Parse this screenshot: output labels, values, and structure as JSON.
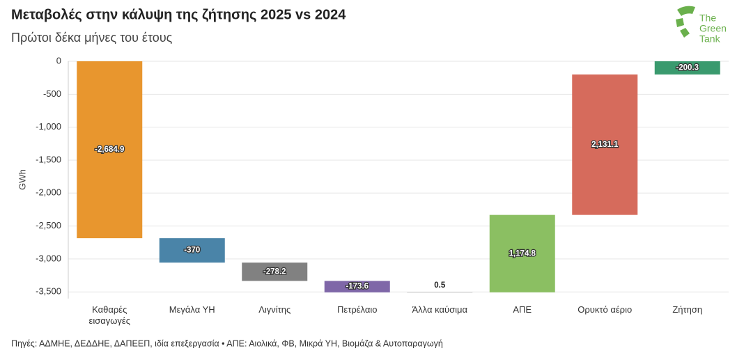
{
  "chart_data": {
    "type": "waterfall",
    "title": "Μεταβολές στην κάλυψη της ζήτησης 2025 vs 2024",
    "subtitle": "Πρώτοι δέκα μήνες του έτους",
    "y_label": "GWh",
    "source": "Πηγές: ΑΔΜΗΕ, ΔΕΔΔΗΕ, ΔΑΠΕΕΠ, ιδία επεξεργασία • ΑΠΕ: Αιολικά, ΦΒ, Μικρά ΥΗ, Βιομάζα & Αυτοπαραγωγή",
    "logo": [
      "The",
      "Green",
      "Tank"
    ],
    "categories": [
      "Καθαρές εισαγωγές",
      "Μεγάλα ΥΗ",
      "Λιγνίτης",
      "Πετρέλαιο",
      "Άλλα καύσιμα",
      "ΑΠΕ",
      "Ορυκτό αέριο",
      "Ζήτηση"
    ],
    "values": [
      -2684.9,
      -370,
      -278.2,
      -173.6,
      0.5,
      1174.8,
      2131.1,
      -200.3
    ],
    "value_labels": [
      "-2,684.9",
      "-370",
      "-278.2",
      "-173.6",
      "0.5",
      "1,174.8",
      "2,131.1",
      "-200.3"
    ],
    "colors": [
      "#e8962e",
      "#4a84a8",
      "#818181",
      "#7f67a8",
      "#b0b0b0",
      "#8bbf62",
      "#d66b5c",
      "#3a9a6e"
    ],
    "last_is_total": true,
    "ylim": [
      -3600,
      0
    ],
    "yticks": [
      0,
      -500,
      {
        "value": -1000,
        "label": "-1,000"
      },
      {
        "value": -1500,
        "label": "-1,500"
      },
      {
        "value": -2000,
        "label": "-2,000"
      },
      {
        "value": -2500,
        "label": "-2,500"
      },
      {
        "value": -3000,
        "label": "-3,000"
      },
      {
        "value": -3500,
        "label": "-3,500"
      }
    ],
    "grid": true
  }
}
